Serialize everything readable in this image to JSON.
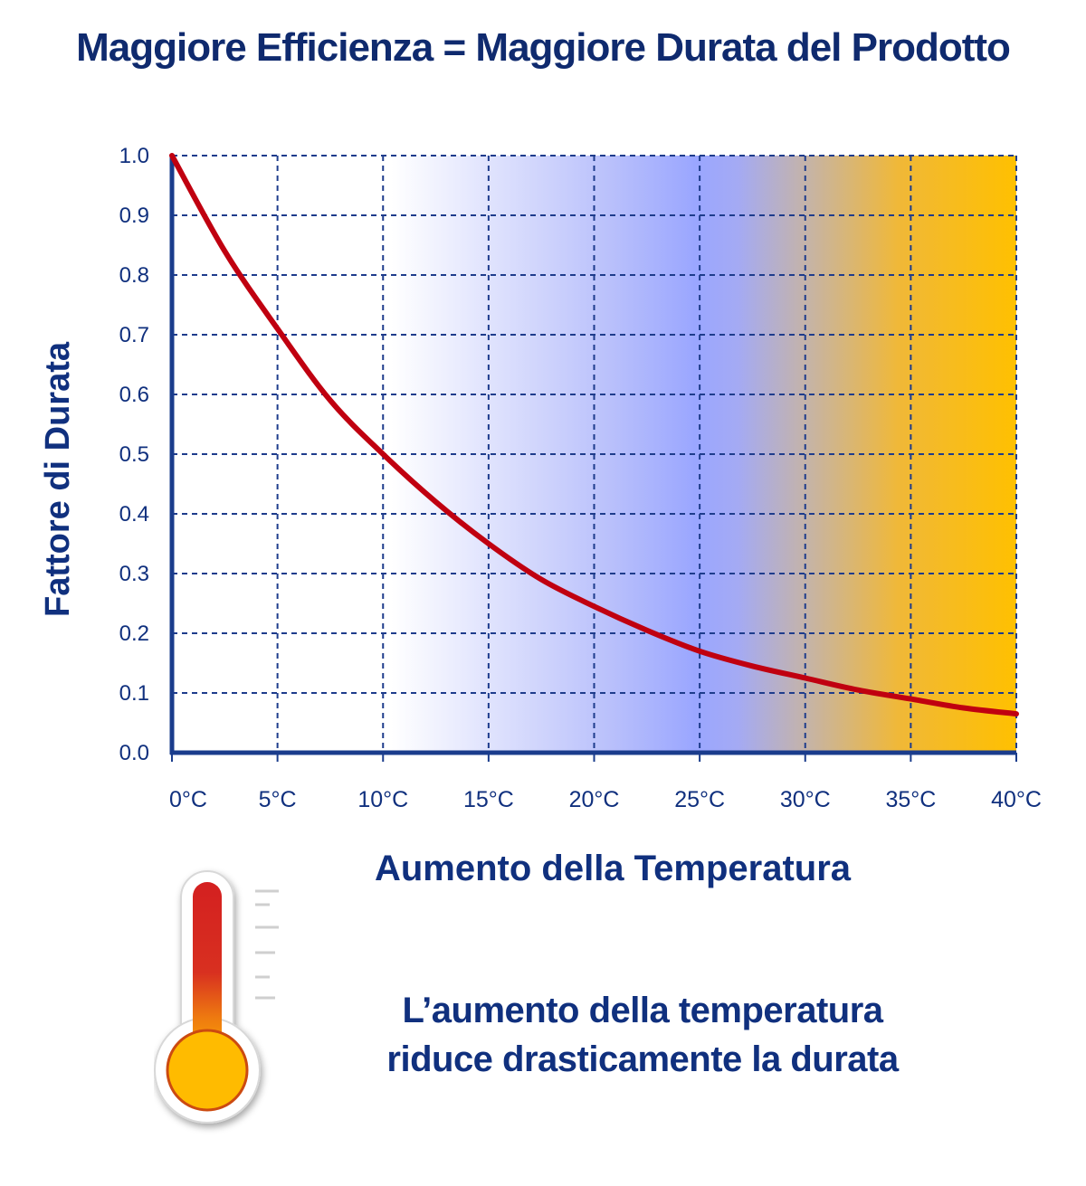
{
  "title": "Maggiore Efficienza = Maggiore Durata del Prodotto",
  "caption": {
    "line1": "L’aumento della temperatura",
    "line2": "riduce drasticamente la durata"
  },
  "colors": {
    "title": "#0f2a6e",
    "axis": "#1a3c8c",
    "curve": "#c00010",
    "grid": "#1e3c8c",
    "bg_start": "#ffffff",
    "bg_mid": "#8f9cff",
    "bg_end": "#ffc000"
  },
  "icons": {
    "thermometer": "thermometer-icon"
  },
  "chart_data": {
    "type": "line",
    "title": "",
    "xlabel": "Aumento della Temperatura",
    "ylabel": "Fattore di Durata",
    "xlim": [
      0,
      40
    ],
    "ylim": [
      0,
      1.0
    ],
    "grid": true,
    "x_ticks": [
      0,
      5,
      10,
      15,
      20,
      25,
      30,
      35,
      40
    ],
    "x_tick_labels": [
      "0°C",
      "5°C",
      "10°C",
      "15°C",
      "20°C",
      "25°C",
      "30°C",
      "35°C",
      "40°C"
    ],
    "y_ticks": [
      0.0,
      0.1,
      0.2,
      0.3,
      0.4,
      0.5,
      0.6,
      0.7,
      0.8,
      0.9,
      1.0
    ],
    "y_tick_labels": [
      "0.0",
      "0.1",
      "0.2",
      "0.3",
      "0.4",
      "0.5",
      "0.6",
      "0.7",
      "0.8",
      "0.9",
      "1.0"
    ],
    "series": [
      {
        "x": [
          0,
          2.5,
          5,
          7.5,
          10,
          12.5,
          15,
          17.5,
          20,
          22.5,
          25,
          27.5,
          30,
          32.5,
          35,
          37.5,
          40
        ],
        "values": [
          1.0,
          0.84,
          0.71,
          0.59,
          0.5,
          0.42,
          0.35,
          0.29,
          0.245,
          0.205,
          0.17,
          0.145,
          0.125,
          0.105,
          0.09,
          0.075,
          0.065
        ]
      }
    ]
  }
}
